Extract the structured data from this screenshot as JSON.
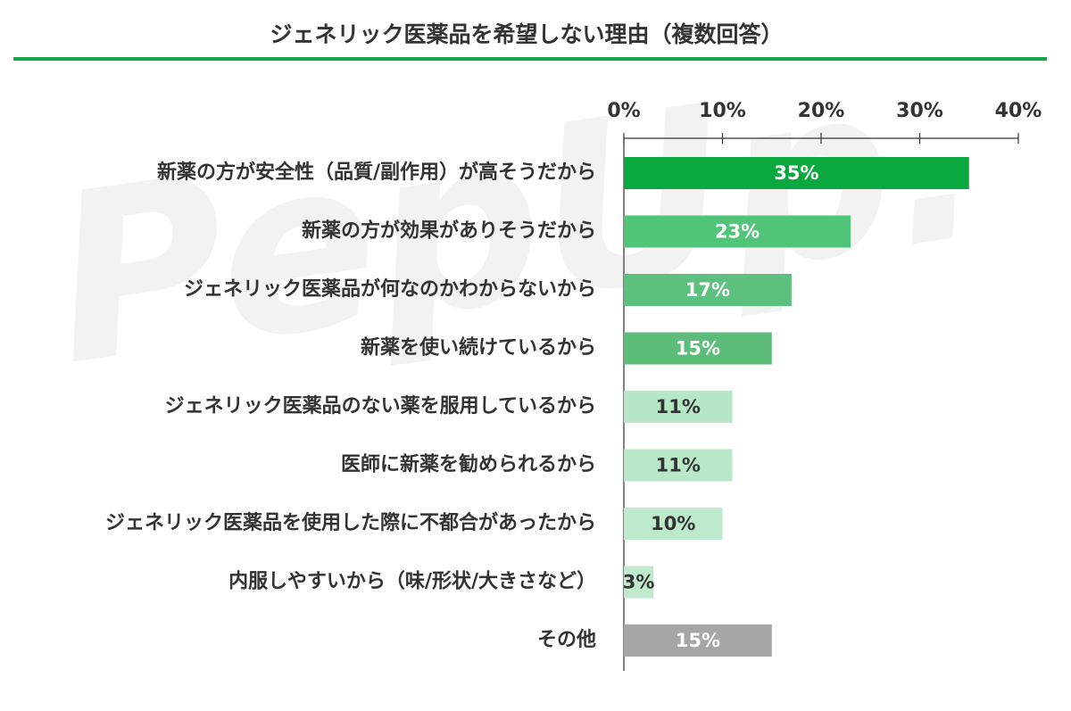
{
  "chart_data": {
    "type": "bar",
    "orientation": "horizontal",
    "title": "ジェネリック医薬品を希望しない理由（複数回答）",
    "watermark": "PepUp.",
    "categories": [
      "新薬の方が安全性（品質/副作用）が高そうだから",
      "新薬の方が効果がありそうだから",
      "ジェネリック医薬品が何なのかわからないから",
      "新薬を使い続けているから",
      "ジェネリック医薬品のない薬を服用しているから",
      "医師に新薬を勧められるから",
      "ジェネリック医薬品を使用した際に不都合があったから",
      "内服しやすいから（味/形状/大きさなど）",
      "その他"
    ],
    "values": [
      35,
      23,
      17,
      15,
      11,
      11,
      10,
      3,
      15
    ],
    "value_labels": [
      "35%",
      "23%",
      "17%",
      "15%",
      "11%",
      "11%",
      "10%",
      "3%",
      "15%"
    ],
    "colors": [
      "#0ba83f",
      "#52c47a",
      "#5cc07f",
      "#5cbc7a",
      "#b5e6c6",
      "#b9e8c9",
      "#bde9cc",
      "#bfeacd",
      "#a6a6a6"
    ],
    "xlim": [
      0,
      40
    ],
    "xticks": [
      {
        "value": 0,
        "label": "0%"
      },
      {
        "value": 10,
        "label": "10%"
      },
      {
        "value": 20,
        "label": "20%"
      },
      {
        "value": 30,
        "label": "30%"
      },
      {
        "value": 40,
        "label": "40%"
      }
    ],
    "title_rule_color": "#14a84a"
  }
}
